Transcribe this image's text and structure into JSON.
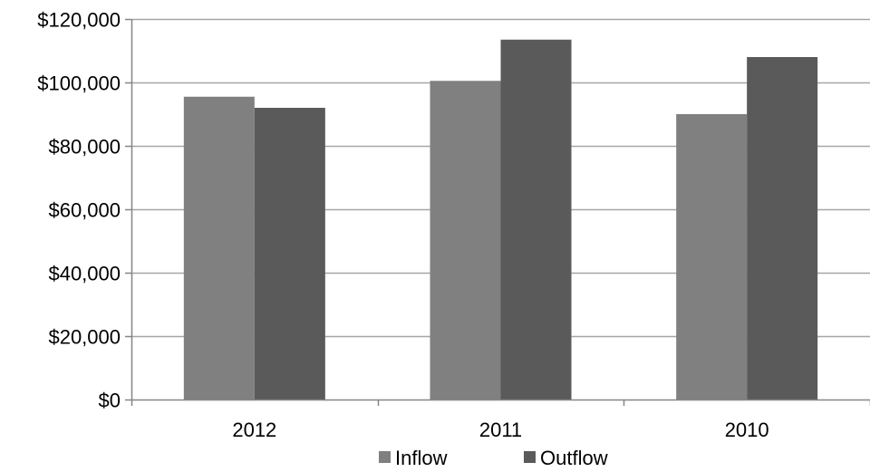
{
  "chart_data": {
    "type": "bar",
    "title": "",
    "xlabel": "",
    "ylabel": "",
    "categories": [
      "2012",
      "2011",
      "2010"
    ],
    "series": [
      {
        "name": "Inflow",
        "values": [
          95500,
          100500,
          90000
        ],
        "color": "#808080"
      },
      {
        "name": "Outflow",
        "values": [
          92000,
          113500,
          108000
        ],
        "color": "#5a5a5a"
      }
    ],
    "ylim": [
      0,
      120000
    ],
    "yticks": [
      0,
      20000,
      40000,
      60000,
      80000,
      100000,
      120000
    ],
    "ytick_labels": [
      "$0",
      "$20,000",
      "$40,000",
      "$60,000",
      "$80,000",
      "$100,000",
      "$120,000"
    ],
    "grid": true,
    "grid_color": "#a6a6a6",
    "legend_position": "bottom"
  }
}
